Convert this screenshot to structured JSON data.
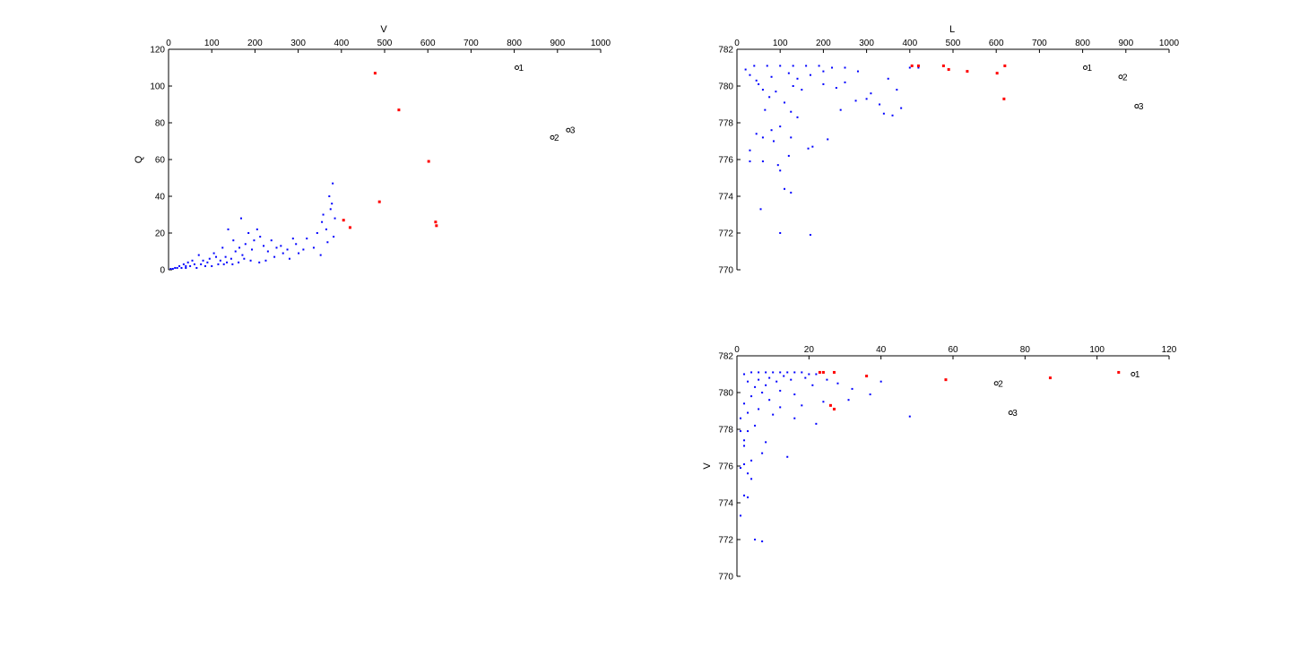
{
  "colors": {
    "regular": "#0000ff",
    "highlight": "#ff0000",
    "labeled": "#000000",
    "axis": "#000000"
  },
  "chart_data": [
    {
      "type": "scatter",
      "title": "",
      "xlabel": "V",
      "ylabel": "Q",
      "xlim": [
        0,
        1000
      ],
      "ylim": [
        0,
        120
      ],
      "x_ticks": [
        0,
        100,
        200,
        300,
        400,
        500,
        600,
        700,
        800,
        900,
        1000
      ],
      "y_ticks": [
        0,
        20,
        40,
        60,
        80,
        100,
        120
      ],
      "grid": false,
      "series": [
        {
          "role": "regular",
          "points": [
            [
              372,
              40
            ],
            [
              380,
              47
            ],
            [
              378,
              36
            ],
            [
              355,
              26
            ],
            [
              365,
              22
            ],
            [
              385,
              28
            ],
            [
              168,
              28
            ],
            [
              344,
              20
            ],
            [
              358,
              30
            ],
            [
              375,
              33
            ],
            [
              368,
              15
            ],
            [
              382,
              18
            ],
            [
              336,
              12
            ],
            [
              352,
              8
            ],
            [
              320,
              17
            ],
            [
              312,
              11
            ],
            [
              295,
              14
            ],
            [
              288,
              17
            ],
            [
              301,
              9
            ],
            [
              265,
              9
            ],
            [
              250,
              12
            ],
            [
              245,
              7
            ],
            [
              230,
              10
            ],
            [
              238,
              16
            ],
            [
              220,
              13
            ],
            [
              212,
              18
            ],
            [
              205,
              22
            ],
            [
              198,
              16
            ],
            [
              193,
              11
            ],
            [
              185,
              20
            ],
            [
              178,
              14
            ],
            [
              171,
              8
            ],
            [
              164,
              12
            ],
            [
              155,
              10
            ],
            [
              150,
              16
            ],
            [
              145,
              6
            ],
            [
              138,
              22
            ],
            [
              132,
              7
            ],
            [
              120,
              5
            ],
            [
              125,
              12
            ],
            [
              110,
              7
            ],
            [
              105,
              9
            ],
            [
              95,
              6
            ],
            [
              90,
              4
            ],
            [
              80,
              5
            ],
            [
              75,
              3
            ],
            [
              70,
              8
            ],
            [
              60,
              3
            ],
            [
              55,
              5
            ],
            [
              50,
              2
            ],
            [
              45,
              4
            ],
            [
              40,
              2
            ],
            [
              35,
              3
            ],
            [
              30,
              1
            ],
            [
              25,
              2
            ],
            [
              20,
              1
            ],
            [
              15,
              1
            ],
            [
              10,
              0.5
            ],
            [
              5,
              0.5
            ],
            [
              260,
              13
            ],
            [
              275,
              11
            ],
            [
              280,
              6
            ],
            [
              225,
              5
            ],
            [
              210,
              4
            ],
            [
              190,
              5
            ],
            [
              175,
              6
            ],
            [
              162,
              4
            ],
            [
              148,
              3
            ],
            [
              135,
              4
            ],
            [
              128,
              3
            ],
            [
              115,
              3
            ],
            [
              100,
              2
            ],
            [
              85,
              2
            ],
            [
              65,
              1
            ],
            [
              40,
              1
            ]
          ]
        },
        {
          "role": "highlight",
          "points": [
            [
              478,
              107
            ],
            [
              533,
              87
            ],
            [
              602,
              59
            ],
            [
              488,
              37
            ],
            [
              618,
              26
            ],
            [
              620,
              24
            ],
            [
              405,
              27
            ],
            [
              420,
              23
            ]
          ]
        },
        {
          "role": "labeled",
          "points": [
            [
              806,
              110,
              "1"
            ],
            [
              888,
              72,
              "2"
            ],
            [
              925,
              76,
              "3"
            ]
          ]
        }
      ]
    },
    {
      "type": "scatter",
      "title": "",
      "xlabel": "L",
      "ylabel": "",
      "xlim": [
        0,
        1000
      ],
      "ylim": [
        770,
        782
      ],
      "x_ticks": [
        0,
        100,
        200,
        300,
        400,
        500,
        600,
        700,
        800,
        900,
        1000
      ],
      "y_ticks": [
        770,
        772,
        774,
        776,
        778,
        780,
        782
      ],
      "grid": false,
      "series": [
        {
          "role": "regular",
          "points": [
            [
              55,
              773.3
            ],
            [
              100,
              772
            ],
            [
              170,
              771.9
            ],
            [
              110,
              774.4
            ],
            [
              125,
              774.2
            ],
            [
              100,
              775.4
            ],
            [
              95,
              775.7
            ],
            [
              60,
              775.9
            ],
            [
              30,
              775.9
            ],
            [
              165,
              776.6
            ],
            [
              175,
              776.7
            ],
            [
              120,
              776.2
            ],
            [
              30,
              776.5
            ],
            [
              85,
              777
            ],
            [
              125,
              777.2
            ],
            [
              60,
              777.2
            ],
            [
              45,
              777.4
            ],
            [
              80,
              777.6
            ],
            [
              210,
              777.1
            ],
            [
              100,
              777.8
            ],
            [
              140,
              778.3
            ],
            [
              125,
              778.6
            ],
            [
              65,
              778.7
            ],
            [
              240,
              778.7
            ],
            [
              340,
              778.5
            ],
            [
              360,
              778.4
            ],
            [
              380,
              778.8
            ],
            [
              330,
              779
            ],
            [
              310,
              779.6
            ],
            [
              370,
              779.8
            ],
            [
              275,
              779.2
            ],
            [
              300,
              779.3
            ],
            [
              350,
              780.4
            ],
            [
              280,
              780.8
            ],
            [
              400,
              781
            ],
            [
              420,
              781
            ],
            [
              130,
              780
            ],
            [
              150,
              779.8
            ],
            [
              200,
              780.1
            ],
            [
              230,
              779.9
            ],
            [
              250,
              780.2
            ],
            [
              90,
              779.7
            ],
            [
              110,
              779.1
            ],
            [
              75,
              779.4
            ],
            [
              60,
              779.8
            ],
            [
              45,
              780.3
            ],
            [
              30,
              780.6
            ],
            [
              20,
              780.9
            ],
            [
              40,
              781.1
            ],
            [
              70,
              781.1
            ],
            [
              100,
              781.1
            ],
            [
              130,
              781.1
            ],
            [
              160,
              781.1
            ],
            [
              190,
              781.1
            ],
            [
              220,
              781
            ],
            [
              250,
              781
            ],
            [
              50,
              780.1
            ],
            [
              80,
              780.5
            ],
            [
              120,
              780.7
            ],
            [
              140,
              780.4
            ],
            [
              170,
              780.6
            ],
            [
              200,
              780.8
            ]
          ]
        },
        {
          "role": "highlight",
          "points": [
            [
              405,
              781.1
            ],
            [
              420,
              781.1
            ],
            [
              478,
              781.1
            ],
            [
              490,
              780.9
            ],
            [
              533,
              780.8
            ],
            [
              602,
              780.7
            ],
            [
              620,
              781.1
            ],
            [
              618,
              779.3
            ]
          ]
        },
        {
          "role": "labeled",
          "points": [
            [
              806,
              781,
              "1"
            ],
            [
              888,
              780.5,
              "2"
            ],
            [
              925,
              778.9,
              "3"
            ]
          ]
        }
      ]
    },
    {
      "type": "scatter",
      "title": "",
      "xlabel": "",
      "ylabel": "V",
      "xlim": [
        0,
        120
      ],
      "ylim": [
        770,
        782
      ],
      "x_ticks": [
        0,
        20,
        40,
        60,
        80,
        100,
        120
      ],
      "y_ticks": [
        770,
        772,
        774,
        776,
        778,
        780,
        782
      ],
      "grid": false,
      "series": [
        {
          "role": "regular",
          "points": [
            [
              1,
              773.3
            ],
            [
              5,
              772
            ],
            [
              7,
              771.9
            ],
            [
              3,
              774.3
            ],
            [
              2,
              774.4
            ],
            [
              4,
              775.3
            ],
            [
              3,
              775.6
            ],
            [
              1,
              775.9
            ],
            [
              2,
              776.1
            ],
            [
              4,
              776.3
            ],
            [
              14,
              776.5
            ],
            [
              7,
              776.7
            ],
            [
              8,
              777.3
            ],
            [
              2,
              777.4
            ],
            [
              3,
              777.9
            ],
            [
              5,
              778.2
            ],
            [
              16,
              778.6
            ],
            [
              22,
              778.3
            ],
            [
              48,
              778.7
            ],
            [
              10,
              778.8
            ],
            [
              3,
              778.9
            ],
            [
              6,
              779.1
            ],
            [
              12,
              779.2
            ],
            [
              18,
              779.3
            ],
            [
              24,
              779.5
            ],
            [
              31,
              779.6
            ],
            [
              37,
              779.9
            ],
            [
              40,
              780.6
            ],
            [
              32,
              780.2
            ],
            [
              28,
              780.5
            ],
            [
              21,
              780.4
            ],
            [
              16,
              779.9
            ],
            [
              12,
              780.1
            ],
            [
              9,
              779.6
            ],
            [
              7,
              780
            ],
            [
              5,
              780.3
            ],
            [
              3,
              780.6
            ],
            [
              2,
              781
            ],
            [
              4,
              781.1
            ],
            [
              6,
              781.1
            ],
            [
              8,
              781.1
            ],
            [
              10,
              781.1
            ],
            [
              12,
              781.1
            ],
            [
              14,
              781.1
            ],
            [
              16,
              781.1
            ],
            [
              18,
              781.1
            ],
            [
              20,
              781
            ],
            [
              22,
              781
            ],
            [
              11,
              780.6
            ],
            [
              15,
              780.7
            ],
            [
              19,
              780.8
            ],
            [
              25,
              780.7
            ],
            [
              6,
              780.7
            ],
            [
              9,
              780.8
            ],
            [
              13,
              780.9
            ],
            [
              8,
              780.4
            ],
            [
              4,
              779.8
            ],
            [
              2,
              779.4
            ],
            [
              1,
              778.6
            ],
            [
              1,
              777.9
            ],
            [
              2,
              777.1
            ]
          ]
        },
        {
          "role": "highlight",
          "points": [
            [
              23,
              781.1
            ],
            [
              24,
              781.1
            ],
            [
              27,
              781.1
            ],
            [
              36,
              780.9
            ],
            [
              58,
              780.7
            ],
            [
              87,
              780.8
            ],
            [
              106,
              781.1
            ],
            [
              26,
              779.3
            ],
            [
              27,
              779.1
            ]
          ]
        },
        {
          "role": "labeled",
          "points": [
            [
              110,
              781,
              "1"
            ],
            [
              72,
              780.5,
              "2"
            ],
            [
              76,
              778.9,
              "3"
            ]
          ]
        }
      ]
    }
  ]
}
